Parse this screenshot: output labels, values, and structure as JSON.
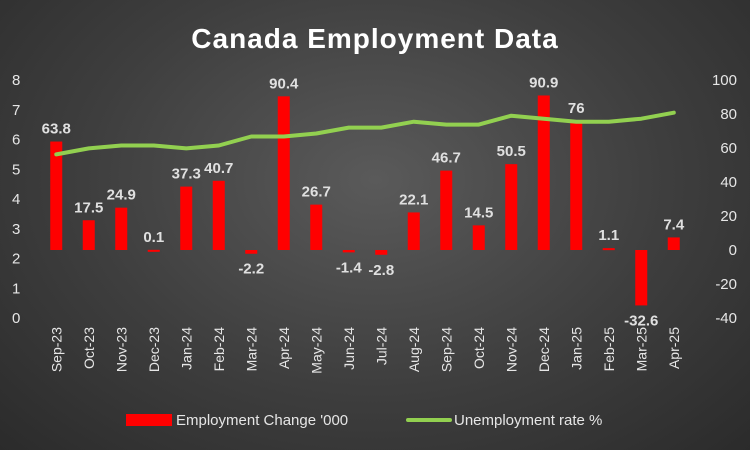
{
  "chart_data": {
    "type": "bar",
    "title": "Canada Employment Data",
    "categories": [
      "Sep-23",
      "Oct-23",
      "Nov-23",
      "Dec-23",
      "Jan-24",
      "Feb-24",
      "Mar-24",
      "Apr-24",
      "May-24",
      "Jun-24",
      "Jul-24",
      "Aug-24",
      "Sep-24",
      "Oct-24",
      "Nov-24",
      "Dec-24",
      "Jan-25",
      "Feb-25",
      "Mar-25",
      "Apr-25"
    ],
    "left_axis": {
      "min": 0,
      "max": 8,
      "step": 1
    },
    "right_axis": {
      "min": -40,
      "max": 100,
      "step": 20
    },
    "series": [
      {
        "name": "Employment Change '000",
        "type": "bar",
        "axis": "right",
        "color": "#ff0000",
        "values": [
          63.8,
          17.5,
          24.9,
          0.1,
          37.3,
          40.7,
          -2.2,
          90.4,
          26.7,
          -1.4,
          -2.8,
          22.1,
          46.7,
          14.5,
          50.5,
          90.9,
          76,
          1.1,
          -32.6,
          7.4
        ],
        "labels": [
          "63.8",
          "17.5",
          "24.9",
          "0.1",
          "37.3",
          "40.7",
          "-2.2",
          "90.4",
          "26.7",
          "-1.4",
          "-2.8",
          "22.1",
          "46.7",
          "14.5",
          "50.5",
          "90.9",
          "76",
          "1.1",
          "-32.6",
          "7.4"
        ]
      },
      {
        "name": "Unemployment rate %",
        "type": "line",
        "axis": "left",
        "color": "#92d050",
        "values": [
          5.5,
          5.7,
          5.8,
          5.8,
          5.7,
          5.8,
          6.1,
          6.1,
          6.2,
          6.4,
          6.4,
          6.6,
          6.5,
          6.5,
          6.8,
          6.7,
          6.6,
          6.6,
          6.7,
          6.9
        ]
      }
    ],
    "legend": {
      "position": "bottom"
    }
  }
}
